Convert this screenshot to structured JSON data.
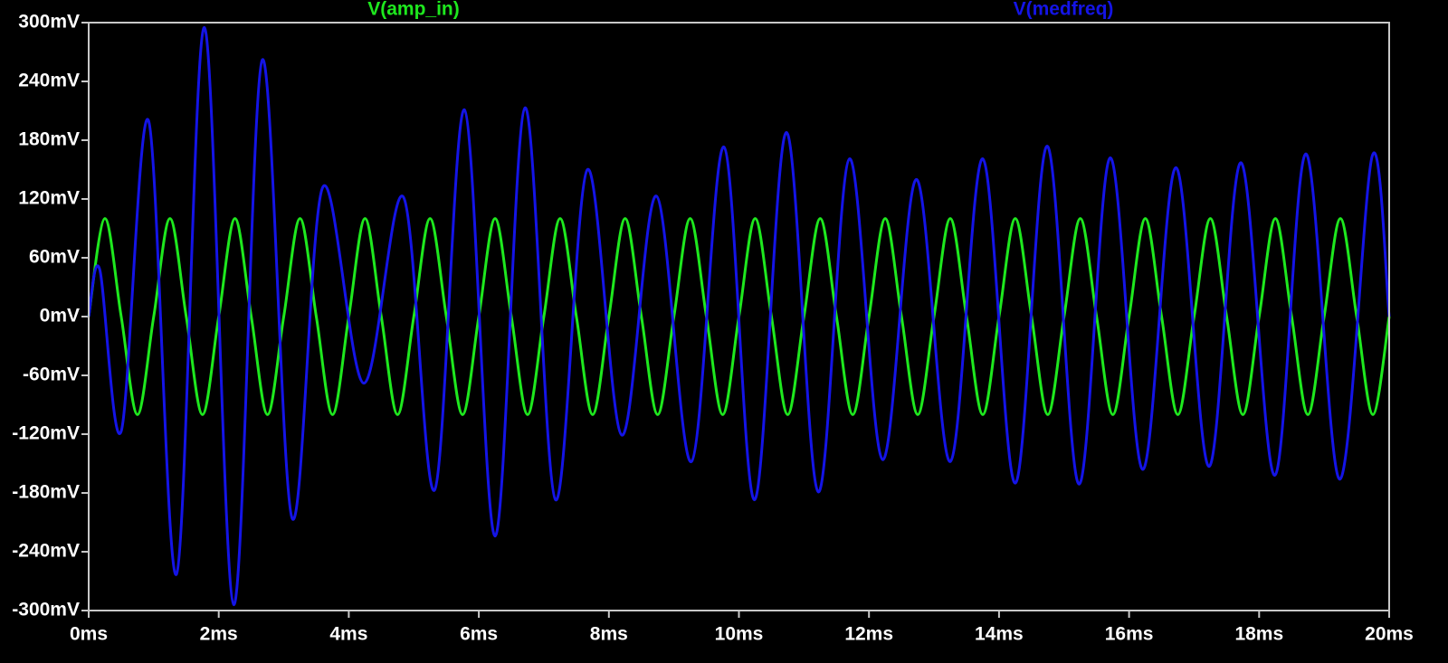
{
  "chart_data": {
    "type": "line",
    "xlim": [
      0,
      20
    ],
    "xticks": [
      {
        "value": 0,
        "label": "0ms"
      },
      {
        "value": 2,
        "label": "2ms"
      },
      {
        "value": 4,
        "label": "4ms"
      },
      {
        "value": 6,
        "label": "6ms"
      },
      {
        "value": 8,
        "label": "8ms"
      },
      {
        "value": 10,
        "label": "10ms"
      },
      {
        "value": 12,
        "label": "12ms"
      },
      {
        "value": 14,
        "label": "14ms"
      },
      {
        "value": 16,
        "label": "16ms"
      },
      {
        "value": 18,
        "label": "18ms"
      },
      {
        "value": 20,
        "label": "20ms"
      }
    ],
    "ylim": [
      -300,
      300
    ],
    "yticks": [
      {
        "value": 300,
        "label": "300mV"
      },
      {
        "value": 240,
        "label": "240mV"
      },
      {
        "value": 180,
        "label": "180mV"
      },
      {
        "value": 120,
        "label": "120mV"
      },
      {
        "value": 60,
        "label": "60mV"
      },
      {
        "value": 0,
        "label": "0mV"
      },
      {
        "value": -60,
        "label": "-60mV"
      },
      {
        "value": -120,
        "label": "-120mV"
      },
      {
        "value": -180,
        "label": "-180mV"
      },
      {
        "value": -240,
        "label": "-240mV"
      },
      {
        "value": -300,
        "label": "-300mV"
      }
    ],
    "grid": false,
    "series": [
      {
        "name": "V(amp_in)",
        "color": "#1ee81e",
        "x": [
          0,
          0.25,
          0.5,
          0.75,
          1,
          1.25,
          1.5,
          1.75,
          2,
          2.25,
          2.5,
          2.75,
          3,
          3.25,
          3.5,
          3.75,
          4,
          4.25,
          4.5,
          4.75,
          5,
          5.25,
          5.5,
          5.75,
          6,
          6.25,
          6.5,
          6.75,
          7,
          7.25,
          7.5,
          7.75,
          8,
          8.25,
          8.5,
          8.75,
          9,
          9.25,
          9.5,
          9.75,
          10,
          10.25,
          10.5,
          10.75,
          11,
          11.25,
          11.5,
          11.75,
          12,
          12.25,
          12.5,
          12.75,
          13,
          13.25,
          13.5,
          13.75,
          14,
          14.25,
          14.5,
          14.75,
          15,
          15.25,
          15.5,
          15.75,
          16,
          16.25,
          16.5,
          16.75,
          17,
          17.25,
          17.5,
          17.75,
          18,
          18.25,
          18.5,
          18.75,
          19,
          19.25,
          19.5,
          19.75,
          20
        ],
        "values": [
          0,
          100,
          0,
          -100,
          0,
          100,
          0,
          -100,
          0,
          100,
          0,
          -100,
          0,
          100,
          0,
          -100,
          0,
          100,
          0,
          -100,
          0,
          100,
          0,
          -100,
          0,
          100,
          0,
          -100,
          0,
          100,
          0,
          -100,
          0,
          100,
          0,
          -100,
          0,
          100,
          0,
          -100,
          0,
          100,
          0,
          -100,
          0,
          100,
          0,
          -100,
          0,
          100,
          0,
          -100,
          0,
          100,
          0,
          -100,
          0,
          100,
          0,
          -100,
          0,
          100,
          0,
          -100,
          0,
          100,
          0,
          -100,
          0,
          100,
          0,
          -100,
          0,
          100,
          0,
          -100,
          0,
          100,
          0,
          -100,
          0
        ]
      },
      {
        "name": "V(medfreq)",
        "color": "#1414e6",
        "x": [
          0,
          0.17,
          0.5,
          0.92,
          1.35,
          1.78,
          2.23,
          2.67,
          3.13,
          3.6,
          4.23,
          4.84,
          5.32,
          5.78,
          6.25,
          6.71,
          7.18,
          7.67,
          8.2,
          8.73,
          9.27,
          9.77,
          10.24,
          10.73,
          11.22,
          11.7,
          12.21,
          12.73,
          13.25,
          13.75,
          14.25,
          14.74,
          15.23,
          15.71,
          16.21,
          16.72,
          17.23,
          17.72,
          18.24,
          18.72,
          19.24,
          19.74,
          20
        ],
        "values": [
          0,
          48,
          -117,
          200,
          -263,
          295,
          -294,
          262,
          -206,
          132,
          -68,
          122,
          -177,
          211,
          -224,
          213,
          -187,
          150,
          -121,
          123,
          -148,
          173,
          -187,
          188,
          -179,
          161,
          -146,
          140,
          -148,
          161,
          -170,
          174,
          -171,
          162,
          -156,
          152,
          -153,
          157,
          -162,
          166,
          -166,
          164,
          0
        ]
      }
    ]
  }
}
